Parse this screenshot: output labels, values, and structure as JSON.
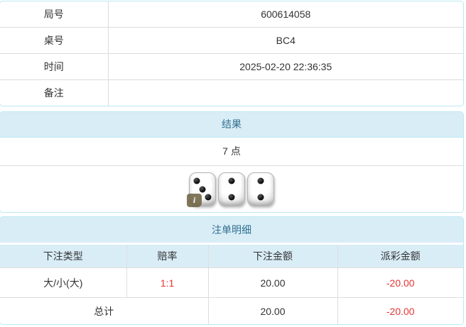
{
  "info_table": {
    "rows": [
      {
        "label": "局号",
        "value": "600614058"
      },
      {
        "label": "桌号",
        "value": "BC4"
      },
      {
        "label": "时间",
        "value": "2025-02-20 22:36:35"
      },
      {
        "label": "备注",
        "value": ""
      }
    ]
  },
  "result_panel": {
    "title": "结果",
    "points": "7 点",
    "dice": [
      3,
      2,
      2
    ],
    "info_badge": "i"
  },
  "bets_panel": {
    "title": "注单明细",
    "columns": [
      "下注类型",
      "赔率",
      "下注金额",
      "派彩金额"
    ],
    "rows": [
      {
        "type": "大/小(大)",
        "odds": "1:1",
        "bet": "20.00",
        "payout": "-20.00"
      }
    ],
    "total_label": "总计",
    "total_bet": "20.00",
    "total_payout": "-20.00"
  },
  "colors": {
    "panel_border": "#bce8f1",
    "heading_bg": "#d9edf7",
    "heading_text": "#31708f",
    "row_border": "#dddddd",
    "body_text": "#333333",
    "negative_red": "#e53535",
    "info_badge_bg": "#706444"
  }
}
